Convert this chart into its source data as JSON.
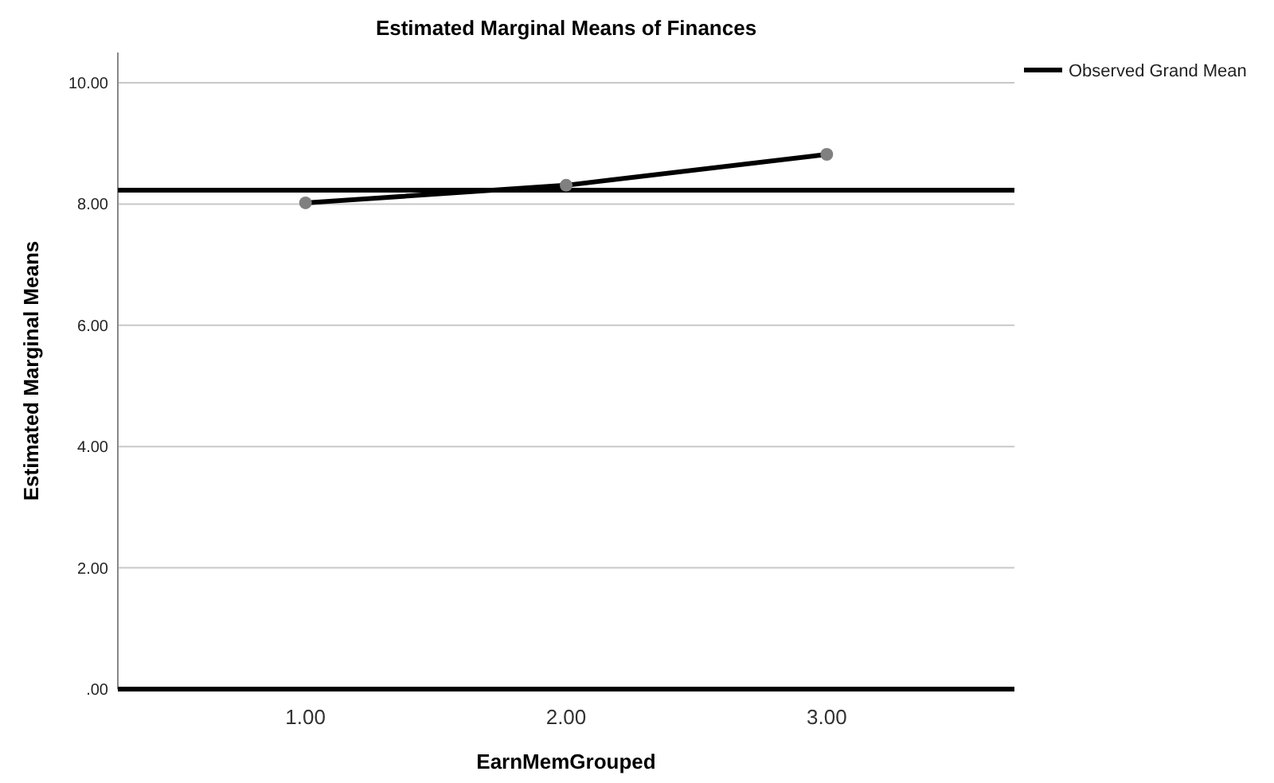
{
  "chart_data": {
    "type": "line",
    "title": "Estimated Marginal Means of Finances",
    "xlabel": "EarnMemGrouped",
    "ylabel": "Estimated Marginal Means",
    "categories": [
      "1.00",
      "2.00",
      "3.00"
    ],
    "series": [
      {
        "color": "#000000",
        "values": [
          8.02,
          8.31,
          8.82
        ]
      }
    ],
    "ylim": [
      0,
      10.5
    ],
    "yticks": [
      {
        "value": 0,
        "label": ".00"
      },
      {
        "value": 2,
        "label": "2.00"
      },
      {
        "value": 4,
        "label": "4.00"
      },
      {
        "value": 6,
        "label": "6.00"
      },
      {
        "value": 8,
        "label": "8.00"
      },
      {
        "value": 10,
        "label": "10.00"
      }
    ],
    "ref_lines": [
      {
        "axis": "y",
        "value": 8.23,
        "label": "Observed Grand Mean",
        "color": "#000000"
      }
    ],
    "grid": "y",
    "legend": "top right",
    "marker": "circle",
    "line_style": "solid"
  }
}
